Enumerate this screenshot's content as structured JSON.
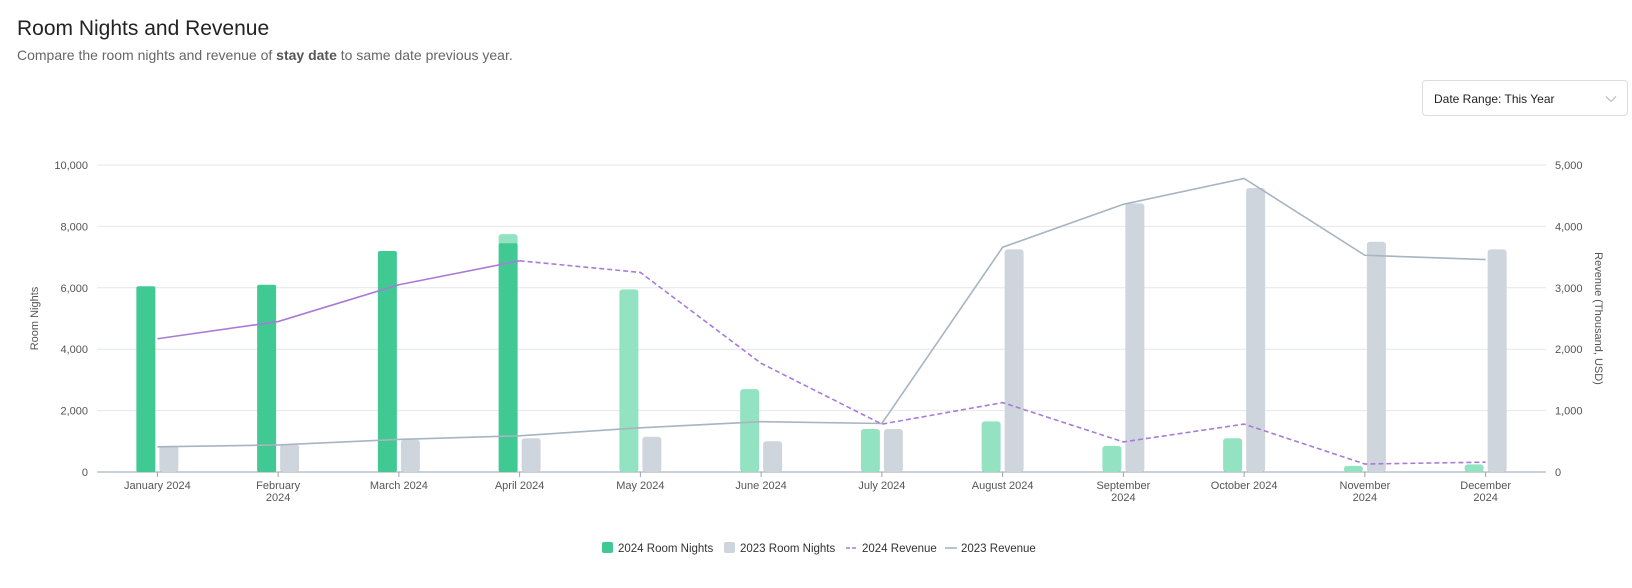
{
  "header": {
    "title": "Room Nights and Revenue",
    "subtitle_prefix": "Compare the room nights and revenue of ",
    "subtitle_bold": "stay date",
    "subtitle_suffix": " to same date previous year."
  },
  "date_range": {
    "label": "Date Range: This Year"
  },
  "colors": {
    "rn2024_actual": "#41c993",
    "rn2024_forecast": "#93e3c2",
    "rn2023": "#cfd5dc",
    "rev2024": "#a97bd8",
    "rev2023": "#a7b4c2",
    "grid": "#e4e7ea",
    "axis_text": "#555555"
  },
  "chart_data": {
    "type": "bar",
    "categories": [
      [
        "January 2024"
      ],
      [
        "February",
        "2024"
      ],
      [
        "March 2024"
      ],
      [
        "April 2024"
      ],
      [
        "May 2024"
      ],
      [
        "June 2024"
      ],
      [
        "July 2024"
      ],
      [
        "August 2024"
      ],
      [
        "September",
        "2024"
      ],
      [
        "October 2024"
      ],
      [
        "November",
        "2024"
      ],
      [
        "December",
        "2024"
      ]
    ],
    "series": [
      {
        "name": "2024 Room Nights",
        "type": "bar",
        "axis": "left",
        "values": [
          6050,
          6100,
          7200,
          7450,
          5950,
          2700,
          1400,
          1650,
          850,
          1100,
          200,
          250
        ],
        "forecast_extra": [
          0,
          0,
          0,
          300,
          0,
          0,
          0,
          0,
          0,
          0,
          0,
          0
        ],
        "forecast_from_index": 4
      },
      {
        "name": "2023 Room Nights",
        "type": "bar",
        "axis": "left",
        "values": [
          850,
          900,
          1050,
          1100,
          1150,
          1000,
          1400,
          7250,
          8750,
          9250,
          7500,
          7250
        ]
      },
      {
        "name": "2024 Revenue",
        "type": "line",
        "axis": "right",
        "dashed_from_index": 3,
        "values": [
          2170,
          2450,
          3050,
          3440,
          3250,
          1770,
          780,
          1130,
          490,
          780,
          130,
          160
        ]
      },
      {
        "name": "2023 Revenue",
        "type": "line",
        "axis": "right",
        "values": [
          410,
          440,
          530,
          590,
          720,
          820,
          790,
          3660,
          4360,
          4780,
          3530,
          3460
        ]
      }
    ],
    "ylabel": "Room Nights",
    "y2label": "Revenue (Thousand, USD)",
    "ylim": [
      0,
      10000
    ],
    "y2lim": [
      0,
      5000
    ],
    "yticks": [
      "0",
      "2,000",
      "4,000",
      "6,000",
      "8,000",
      "10,000"
    ],
    "y2ticks": [
      "0",
      "1,000",
      "2,000",
      "3,000",
      "4,000",
      "5,000"
    ],
    "legend_position": "bottom-center",
    "grid": true
  }
}
